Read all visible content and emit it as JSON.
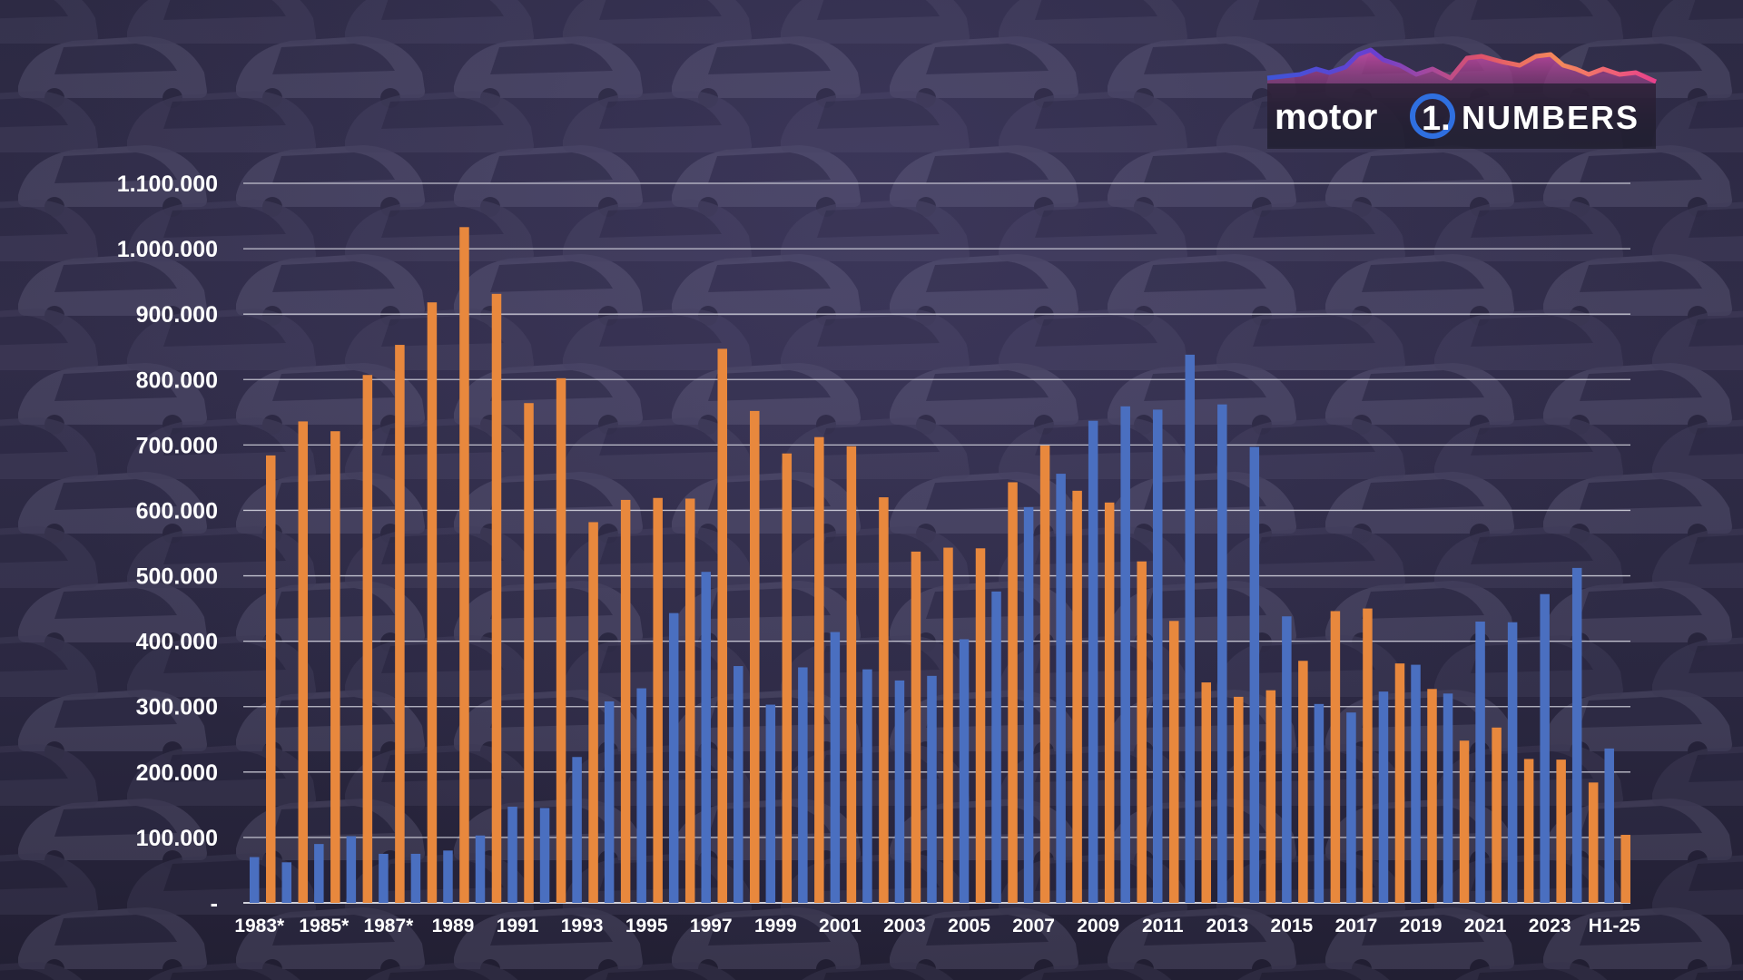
{
  "brand": {
    "word_left": "motor",
    "mark": "1.",
    "word_right": "NUMBERS"
  },
  "colors": {
    "series_blue": "#4a6fc0",
    "series_orange": "#e8883d",
    "grid": "#d9d9e3",
    "text": "#ffffff"
  },
  "chart_data": {
    "type": "bar",
    "title": "",
    "xlabel": "",
    "ylabel": "",
    "ylim": [
      0,
      1100000
    ],
    "yticks": [
      0,
      100000,
      200000,
      300000,
      400000,
      500000,
      600000,
      700000,
      800000,
      900000,
      1000000,
      1100000
    ],
    "ytick_labels": [
      "-",
      "100.000",
      "200.000",
      "300.000",
      "400.000",
      "500.000",
      "600.000",
      "700.000",
      "800.000",
      "900.000",
      "1.000.000",
      "1.100.000"
    ],
    "grid": true,
    "legend": "none",
    "categories": [
      "1983*",
      "1984*",
      "1985*",
      "1986*",
      "1987*",
      "1988*",
      "1989",
      "1990",
      "1991",
      "1992",
      "1993",
      "1994",
      "1995",
      "1996",
      "1997",
      "1998",
      "1999",
      "2000",
      "2001",
      "2002",
      "2003",
      "2004",
      "2005",
      "2006",
      "2007",
      "2008",
      "2009",
      "2010",
      "2011",
      "2012",
      "2013",
      "2014",
      "2015",
      "2016",
      "2017",
      "2018",
      "2019",
      "2020",
      "2021",
      "2022",
      "2023",
      "2024",
      "H1-25"
    ],
    "x_tick_labels_shown": [
      "1983*",
      "1985*",
      "1987*",
      "1989",
      "1991",
      "1993",
      "1995",
      "1997",
      "1999",
      "2001",
      "2003",
      "2005",
      "2007",
      "2009",
      "2011",
      "2013",
      "2015",
      "2017",
      "2019",
      "2021",
      "2023",
      "H1-25"
    ],
    "series": [
      {
        "color": "#4a6fc0",
        "values": [
          70000,
          62000,
          90000,
          102000,
          75000,
          75000,
          80000,
          103000,
          147000,
          145000,
          223000,
          308000,
          328000,
          443000,
          506000,
          362000,
          303000,
          360000,
          414000,
          357000,
          340000,
          347000,
          403000,
          476000,
          605000,
          656000,
          737000,
          759000,
          754000,
          838000,
          762000,
          697000,
          438000,
          304000,
          291000,
          323000,
          364000,
          320000,
          430000,
          429000,
          472000,
          512000,
          236000
        ]
      },
      {
        "color": "#e8883d",
        "values": [
          684000,
          736000,
          721000,
          807000,
          853000,
          918000,
          1033000,
          931000,
          764000,
          802000,
          582000,
          616000,
          619000,
          618000,
          847000,
          752000,
          687000,
          712000,
          698000,
          620000,
          537000,
          543000,
          542000,
          643000,
          699000,
          630000,
          612000,
          522000,
          431000,
          337000,
          315000,
          325000,
          370000,
          446000,
          450000,
          366000,
          327000,
          248000,
          268000,
          220000,
          219000,
          184000,
          104000
        ]
      }
    ]
  }
}
